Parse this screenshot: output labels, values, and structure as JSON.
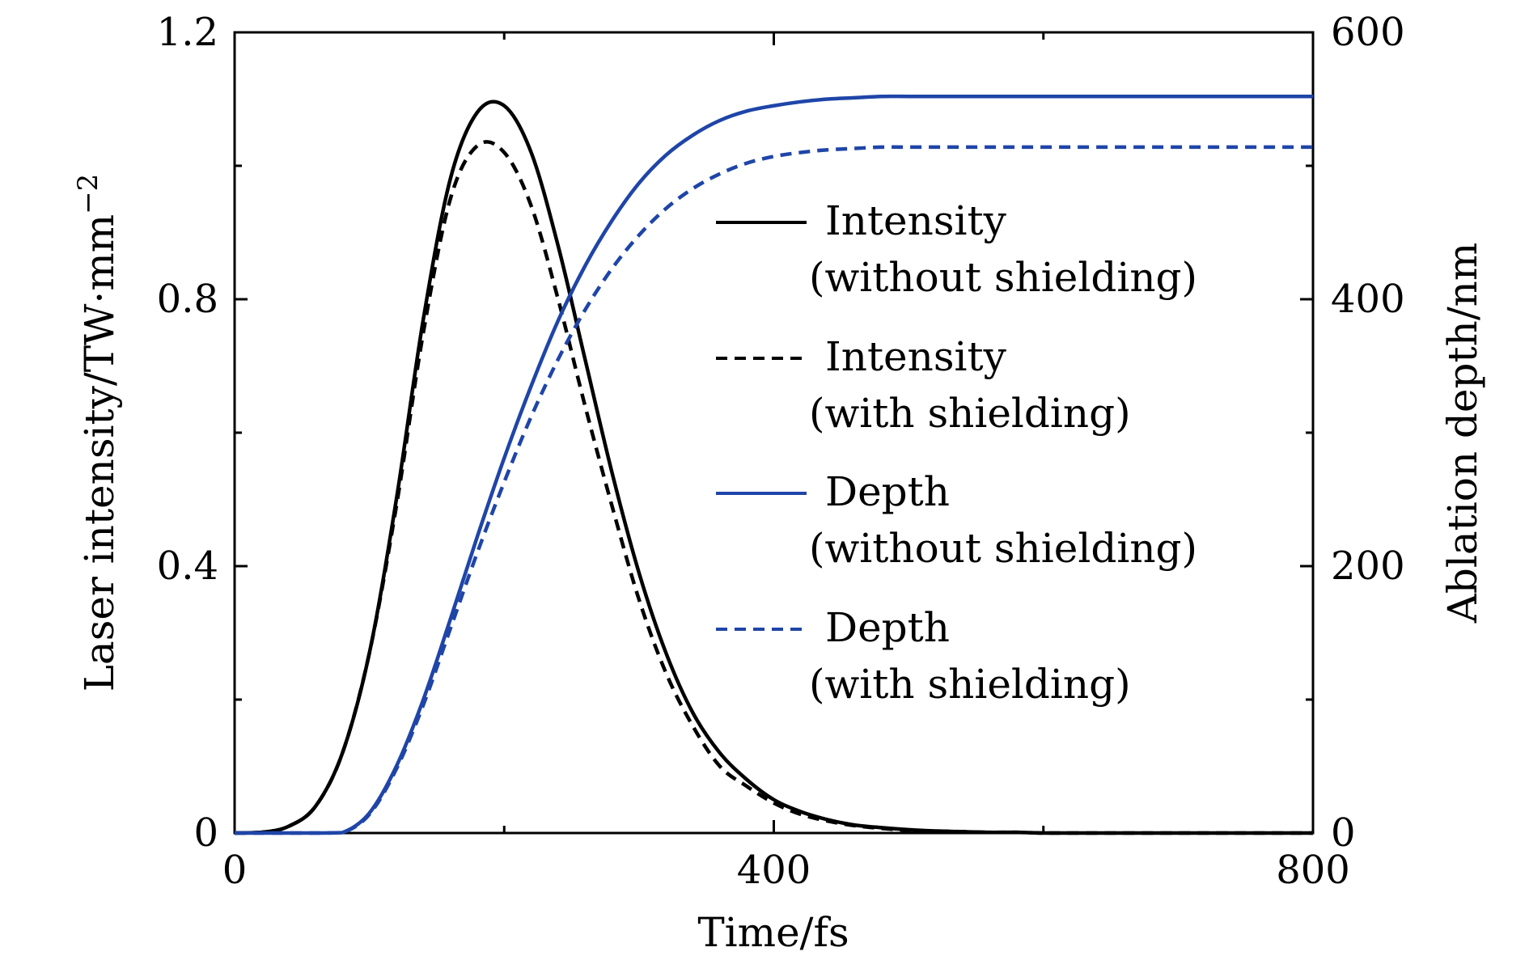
{
  "chart_data": {
    "type": "line",
    "title": "",
    "xlabel": "Time/fs",
    "ylabel_left": "Laser intensity/TW·mm",
    "ylabel_left_exponent": "−2",
    "ylabel_right": "Ablation depth/nm",
    "xlim": [
      0,
      800
    ],
    "ylim_left": [
      0,
      1.2
    ],
    "ylim_right": [
      0,
      600
    ],
    "x_ticks": [
      {
        "value": 0,
        "label": "0"
      },
      {
        "value": 400,
        "label": "400"
      },
      {
        "value": 800,
        "label": "800"
      }
    ],
    "y_left_ticks": [
      {
        "value": 0,
        "label": "0"
      },
      {
        "value": 0.4,
        "label": "0.4"
      },
      {
        "value": 0.8,
        "label": "0.8"
      },
      {
        "value": 1.2,
        "label": "1.2"
      }
    ],
    "y_right_ticks": [
      {
        "value": 0,
        "label": "0"
      },
      {
        "value": 200,
        "label": "200"
      },
      {
        "value": 400,
        "label": "400"
      },
      {
        "value": 600,
        "label": "600"
      }
    ],
    "x": [
      0,
      20,
      40,
      60,
      80,
      100,
      120,
      140,
      160,
      180,
      200,
      220,
      240,
      260,
      280,
      300,
      320,
      340,
      360,
      380,
      400,
      420,
      440,
      460,
      480,
      500,
      520,
      540,
      560,
      580,
      600,
      620,
      640,
      660,
      680,
      700,
      720,
      740,
      760,
      780,
      800
    ],
    "grid": false,
    "legend_position": "right",
    "series": [
      {
        "name": "Intensity",
        "name_line2": "(without shielding)",
        "axis": "left",
        "color": "#000000",
        "dash": "solid",
        "values": [
          0,
          0.001,
          0.01,
          0.04,
          0.12,
          0.27,
          0.5,
          0.77,
          0.98,
          1.08,
          1.09,
          1.02,
          0.88,
          0.71,
          0.54,
          0.39,
          0.27,
          0.18,
          0.12,
          0.08,
          0.05,
          0.032,
          0.02,
          0.012,
          0.008,
          0.005,
          0.003,
          0.002,
          0.001,
          0.001,
          0,
          0,
          0,
          0,
          0,
          0,
          0,
          0,
          0,
          0,
          0
        ]
      },
      {
        "name": "Intensity",
        "name_line2": "(with shielding)",
        "axis": "left",
        "color": "#000000",
        "dash": "dashed",
        "values": [
          0,
          0.001,
          0.01,
          0.04,
          0.12,
          0.27,
          0.49,
          0.75,
          0.95,
          1.03,
          1.02,
          0.94,
          0.8,
          0.64,
          0.49,
          0.35,
          0.24,
          0.16,
          0.1,
          0.07,
          0.045,
          0.028,
          0.018,
          0.011,
          0.007,
          0.004,
          0.003,
          0.002,
          0.001,
          0.001,
          0,
          0,
          0,
          0,
          0,
          0,
          0,
          0,
          0,
          0,
          0
        ]
      },
      {
        "name": "Depth",
        "name_line2": "(without shielding)",
        "axis": "right",
        "color": "#1f45a8",
        "dash": "solid",
        "values": [
          0,
          0,
          0,
          0,
          0.3,
          15,
          50,
          100,
          160,
          222,
          281,
          335,
          384,
          425,
          459,
          487,
          508,
          523,
          534,
          541,
          545,
          548,
          550,
          551,
          552,
          552,
          552,
          552,
          552,
          552,
          552,
          552,
          552,
          552,
          552,
          552,
          552,
          552,
          552,
          552,
          552
        ]
      },
      {
        "name": "Depth",
        "name_line2": "(with shielding)",
        "axis": "right",
        "color": "#1f45a8",
        "dash": "dashed",
        "values": [
          0,
          0,
          0,
          0,
          0.3,
          14,
          48,
          96,
          153,
          210,
          263,
          312,
          355,
          392,
          423,
          448,
          468,
          483,
          494,
          502,
          507,
          510,
          512,
          513,
          514,
          514,
          514,
          514,
          514,
          514,
          514,
          514,
          514,
          514,
          514,
          514,
          514,
          514,
          514,
          514,
          514
        ]
      }
    ]
  }
}
